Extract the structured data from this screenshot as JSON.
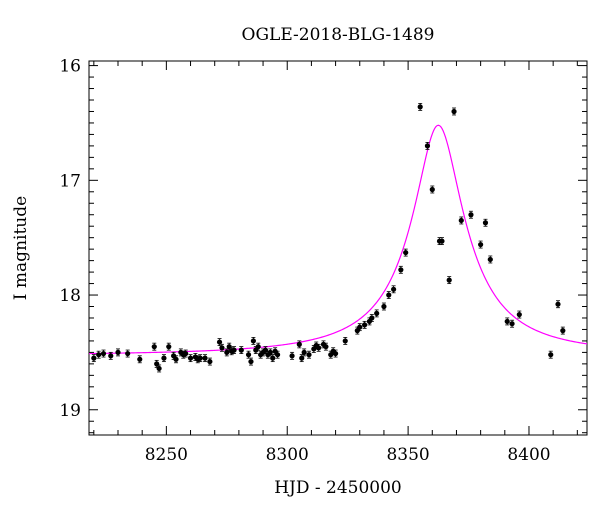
{
  "chart_data": {
    "type": "scatter",
    "title": "OGLE-2018-BLG-1489",
    "xlabel": "HJD - 2450000",
    "ylabel": "I magnitude",
    "xlim": [
      8218,
      8424
    ],
    "ylim": [
      19.22,
      15.96
    ],
    "y_inverted": true,
    "xticks": [
      8250,
      8300,
      8350,
      8400
    ],
    "yticks": [
      16,
      17,
      18,
      19
    ],
    "grid": false,
    "model_color": "#ff00ff",
    "point_color": "#000000",
    "model": {
      "name": "",
      "t0": 8362.5,
      "baseline": 18.53,
      "peak": 16.52,
      "width": 8.5
    },
    "series": [
      {
        "name": "",
        "x": [
          8220,
          8222,
          8224,
          8227,
          8230,
          8234,
          8239,
          8245,
          8246,
          8247,
          8249,
          8251,
          8253,
          8254,
          8256,
          8257,
          8258,
          8260,
          8262,
          8263,
          8264,
          8266,
          8268,
          8272,
          8273,
          8275,
          8276,
          8277,
          8278,
          8281,
          8284,
          8285,
          8286,
          8287,
          8288,
          8289,
          8290,
          8291,
          8292,
          8293,
          8294,
          8295,
          8296,
          8302,
          8305,
          8306,
          8307,
          8309,
          8311,
          8312,
          8313,
          8315,
          8316,
          8318,
          8319,
          8320,
          8324,
          8329,
          8330,
          8332,
          8334,
          8335,
          8337,
          8340,
          8342,
          8344,
          8347,
          8349,
          8355,
          8358,
          8360,
          8363,
          8364,
          8367,
          8369,
          8372,
          8376,
          8380,
          8382,
          8384,
          8391,
          8393,
          8396,
          8409,
          8412,
          8414
        ],
        "y": [
          18.55,
          18.52,
          18.51,
          18.53,
          18.5,
          18.51,
          18.56,
          18.45,
          18.6,
          18.64,
          18.55,
          18.45,
          18.53,
          18.56,
          18.5,
          18.52,
          18.51,
          18.55,
          18.54,
          18.56,
          18.55,
          18.55,
          18.58,
          18.41,
          18.46,
          18.5,
          18.45,
          18.49,
          18.48,
          18.48,
          18.52,
          18.58,
          18.4,
          18.48,
          18.45,
          18.52,
          18.5,
          18.48,
          18.52,
          18.5,
          18.55,
          18.49,
          18.52,
          18.53,
          18.43,
          18.55,
          18.5,
          18.52,
          18.47,
          18.44,
          18.46,
          18.43,
          18.45,
          18.52,
          18.49,
          18.51,
          18.4,
          18.31,
          18.28,
          18.26,
          18.23,
          18.2,
          18.16,
          18.1,
          18.0,
          17.95,
          17.78,
          17.63,
          16.36,
          16.7,
          17.08,
          17.53,
          17.53,
          17.87,
          16.4,
          17.35,
          17.3,
          17.56,
          17.37,
          17.69,
          18.23,
          18.25,
          18.17,
          18.52,
          18.08,
          18.31
        ]
      }
    ]
  }
}
